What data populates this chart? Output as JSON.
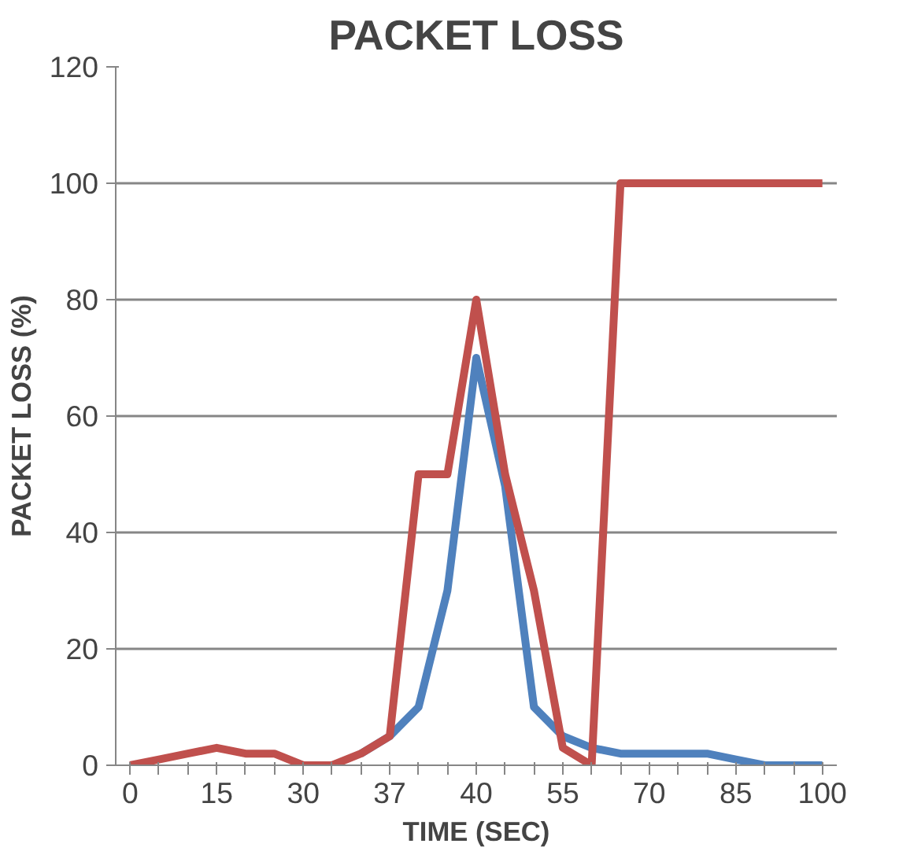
{
  "chart_data": {
    "type": "line",
    "title": "PACKET LOSS",
    "xlabel": "TIME (SEC)",
    "ylabel": "PACKET LOSS (%)",
    "categories": [
      "0",
      null,
      null,
      "15",
      null,
      null,
      "30",
      null,
      null,
      "37",
      null,
      null,
      "40",
      null,
      null,
      "55",
      null,
      null,
      "70",
      null,
      null,
      "85",
      null,
      null,
      "100"
    ],
    "series": [
      {
        "color": "#4f81bd",
        "values": [
          null,
          null,
          null,
          null,
          null,
          null,
          null,
          null,
          2,
          5,
          10,
          30,
          70,
          48,
          10,
          5,
          3,
          2,
          2,
          2,
          2,
          1,
          0,
          0,
          0
        ]
      },
      {
        "color": "#c0504d",
        "values": [
          0,
          1,
          2,
          3,
          2,
          2,
          0,
          0,
          2,
          5,
          50,
          50,
          80,
          50,
          30,
          3,
          0,
          100,
          100,
          100,
          100,
          100,
          100,
          100,
          100
        ]
      }
    ],
    "ylim": [
      0,
      120
    ],
    "yticks": [
      0,
      20,
      40,
      60,
      80,
      100,
      120
    ],
    "grid": "y",
    "marker": "none",
    "line_style": "solid"
  }
}
